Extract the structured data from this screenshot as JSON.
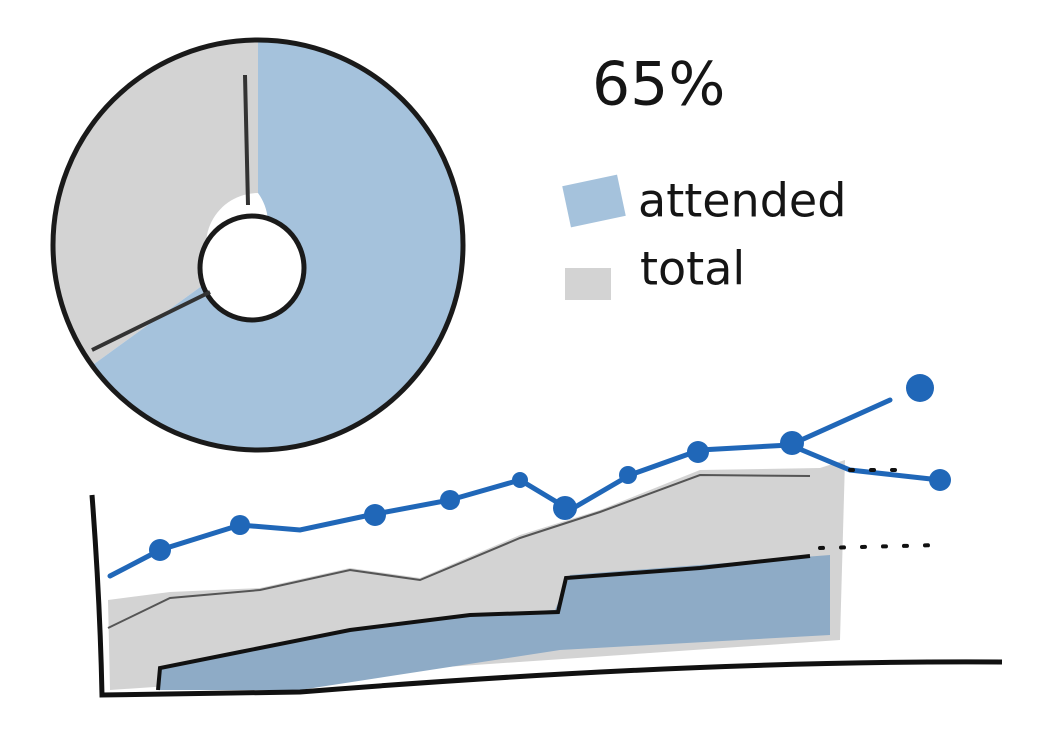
{
  "label": "65%",
  "legend": [
    {
      "label": "attended"
    },
    {
      "label": "total"
    }
  ]
}
